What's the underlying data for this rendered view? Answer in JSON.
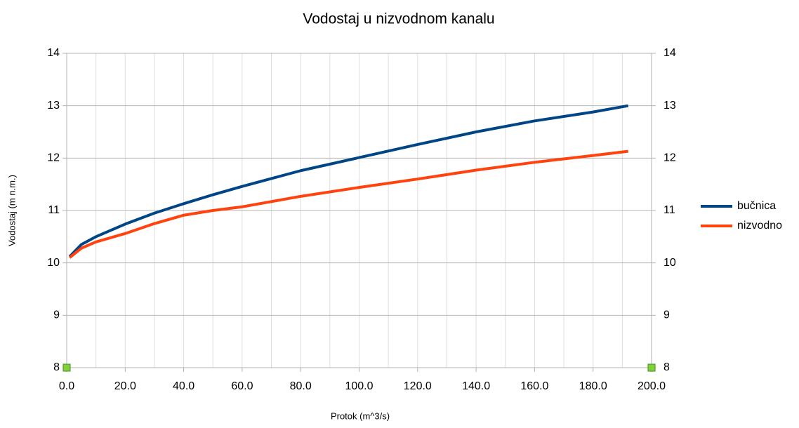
{
  "chart_data": {
    "type": "line",
    "title": "Vodostaj u nizvodnom kanalu",
    "xlabel": "Protok (m^3/s)",
    "ylabel": "Vodostaj (m n.m.)",
    "x": [
      1,
      5,
      10,
      20,
      30,
      40,
      50,
      60,
      80,
      100,
      120,
      140,
      160,
      180,
      192
    ],
    "series": [
      {
        "name": "bučnica",
        "color": "#004586",
        "values": [
          10.12,
          10.35,
          10.5,
          10.74,
          10.95,
          11.13,
          11.3,
          11.46,
          11.76,
          12.01,
          12.26,
          12.5,
          12.71,
          12.88,
          13.0
        ]
      },
      {
        "name": "nizvodno",
        "color": "#ff420e",
        "values": [
          10.1,
          10.28,
          10.4,
          10.56,
          10.75,
          10.91,
          11.0,
          11.07,
          11.27,
          11.44,
          11.6,
          11.77,
          11.92,
          12.05,
          12.13
        ]
      }
    ],
    "xlim": [
      0,
      200
    ],
    "xticks": [
      {
        "value": 0,
        "label": "0.0"
      },
      {
        "value": 20,
        "label": "20.0"
      },
      {
        "value": 40,
        "label": "40.0"
      },
      {
        "value": 60,
        "label": "60.0"
      },
      {
        "value": 80,
        "label": "80.0"
      },
      {
        "value": 100,
        "label": "100.0"
      },
      {
        "value": 120,
        "label": "120.0"
      },
      {
        "value": 140,
        "label": "140.0"
      },
      {
        "value": 160,
        "label": "160.0"
      },
      {
        "value": 180,
        "label": "180.0"
      },
      {
        "value": 200,
        "label": "200.0"
      }
    ],
    "xgrid_ticks": [
      0,
      10,
      20,
      30,
      40,
      50,
      60,
      70,
      80,
      90,
      100,
      110,
      120,
      130,
      140,
      150,
      160,
      170,
      180,
      190,
      200
    ],
    "ylim": [
      8,
      14
    ],
    "yticks": [
      8,
      9,
      10,
      11,
      12,
      13,
      14
    ],
    "y2lim": [
      8,
      14
    ],
    "y2ticks": [
      8,
      9,
      10,
      11,
      12,
      13,
      14
    ],
    "grid": true,
    "legend": "right"
  }
}
